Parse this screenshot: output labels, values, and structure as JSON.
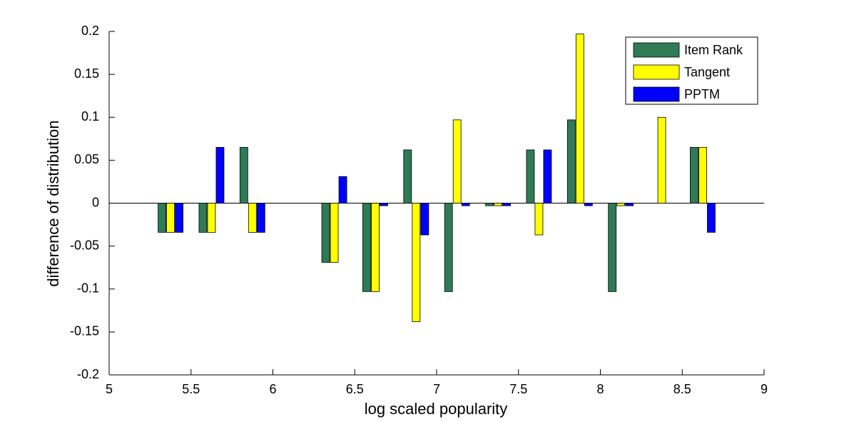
{
  "chart_data": {
    "type": "bar",
    "x_label": "log scaled popularity",
    "y_label": "difference of distribution",
    "x": [
      5.375,
      5.625,
      5.875,
      6.125,
      6.375,
      6.625,
      6.875,
      7.125,
      7.375,
      7.625,
      7.875,
      8.125,
      8.375,
      8.625
    ],
    "series": [
      {
        "name": "Item Rank",
        "color": "#2e7b55",
        "values": [
          -0.034,
          -0.034,
          0.065,
          0,
          -0.069,
          -0.103,
          0.062,
          -0.103,
          -0.003,
          0.062,
          0.097,
          -0.103,
          0,
          0.065
        ]
      },
      {
        "name": "Tangent",
        "color": "#ffff00",
        "values": [
          -0.034,
          -0.034,
          -0.034,
          0,
          -0.069,
          -0.103,
          -0.138,
          0.097,
          -0.003,
          -0.037,
          0.197,
          -0.003,
          0.1,
          0.065
        ]
      },
      {
        "name": "PPTM",
        "color": "#0000ff",
        "values": [
          -0.034,
          0.065,
          -0.034,
          0,
          0.031,
          -0.003,
          -0.037,
          -0.003,
          -0.003,
          0.062,
          -0.003,
          -0.003,
          0,
          -0.034
        ]
      }
    ],
    "xlim": [
      5,
      9
    ],
    "xticks": [
      5,
      5.5,
      6,
      6.5,
      7,
      7.5,
      8,
      8.5,
      9
    ],
    "ylim": [
      -0.2,
      0.2
    ],
    "yticks": [
      -0.2,
      -0.15,
      -0.1,
      -0.05,
      0,
      0.05,
      0.1,
      0.15,
      0.2
    ],
    "legend": "upper right"
  }
}
